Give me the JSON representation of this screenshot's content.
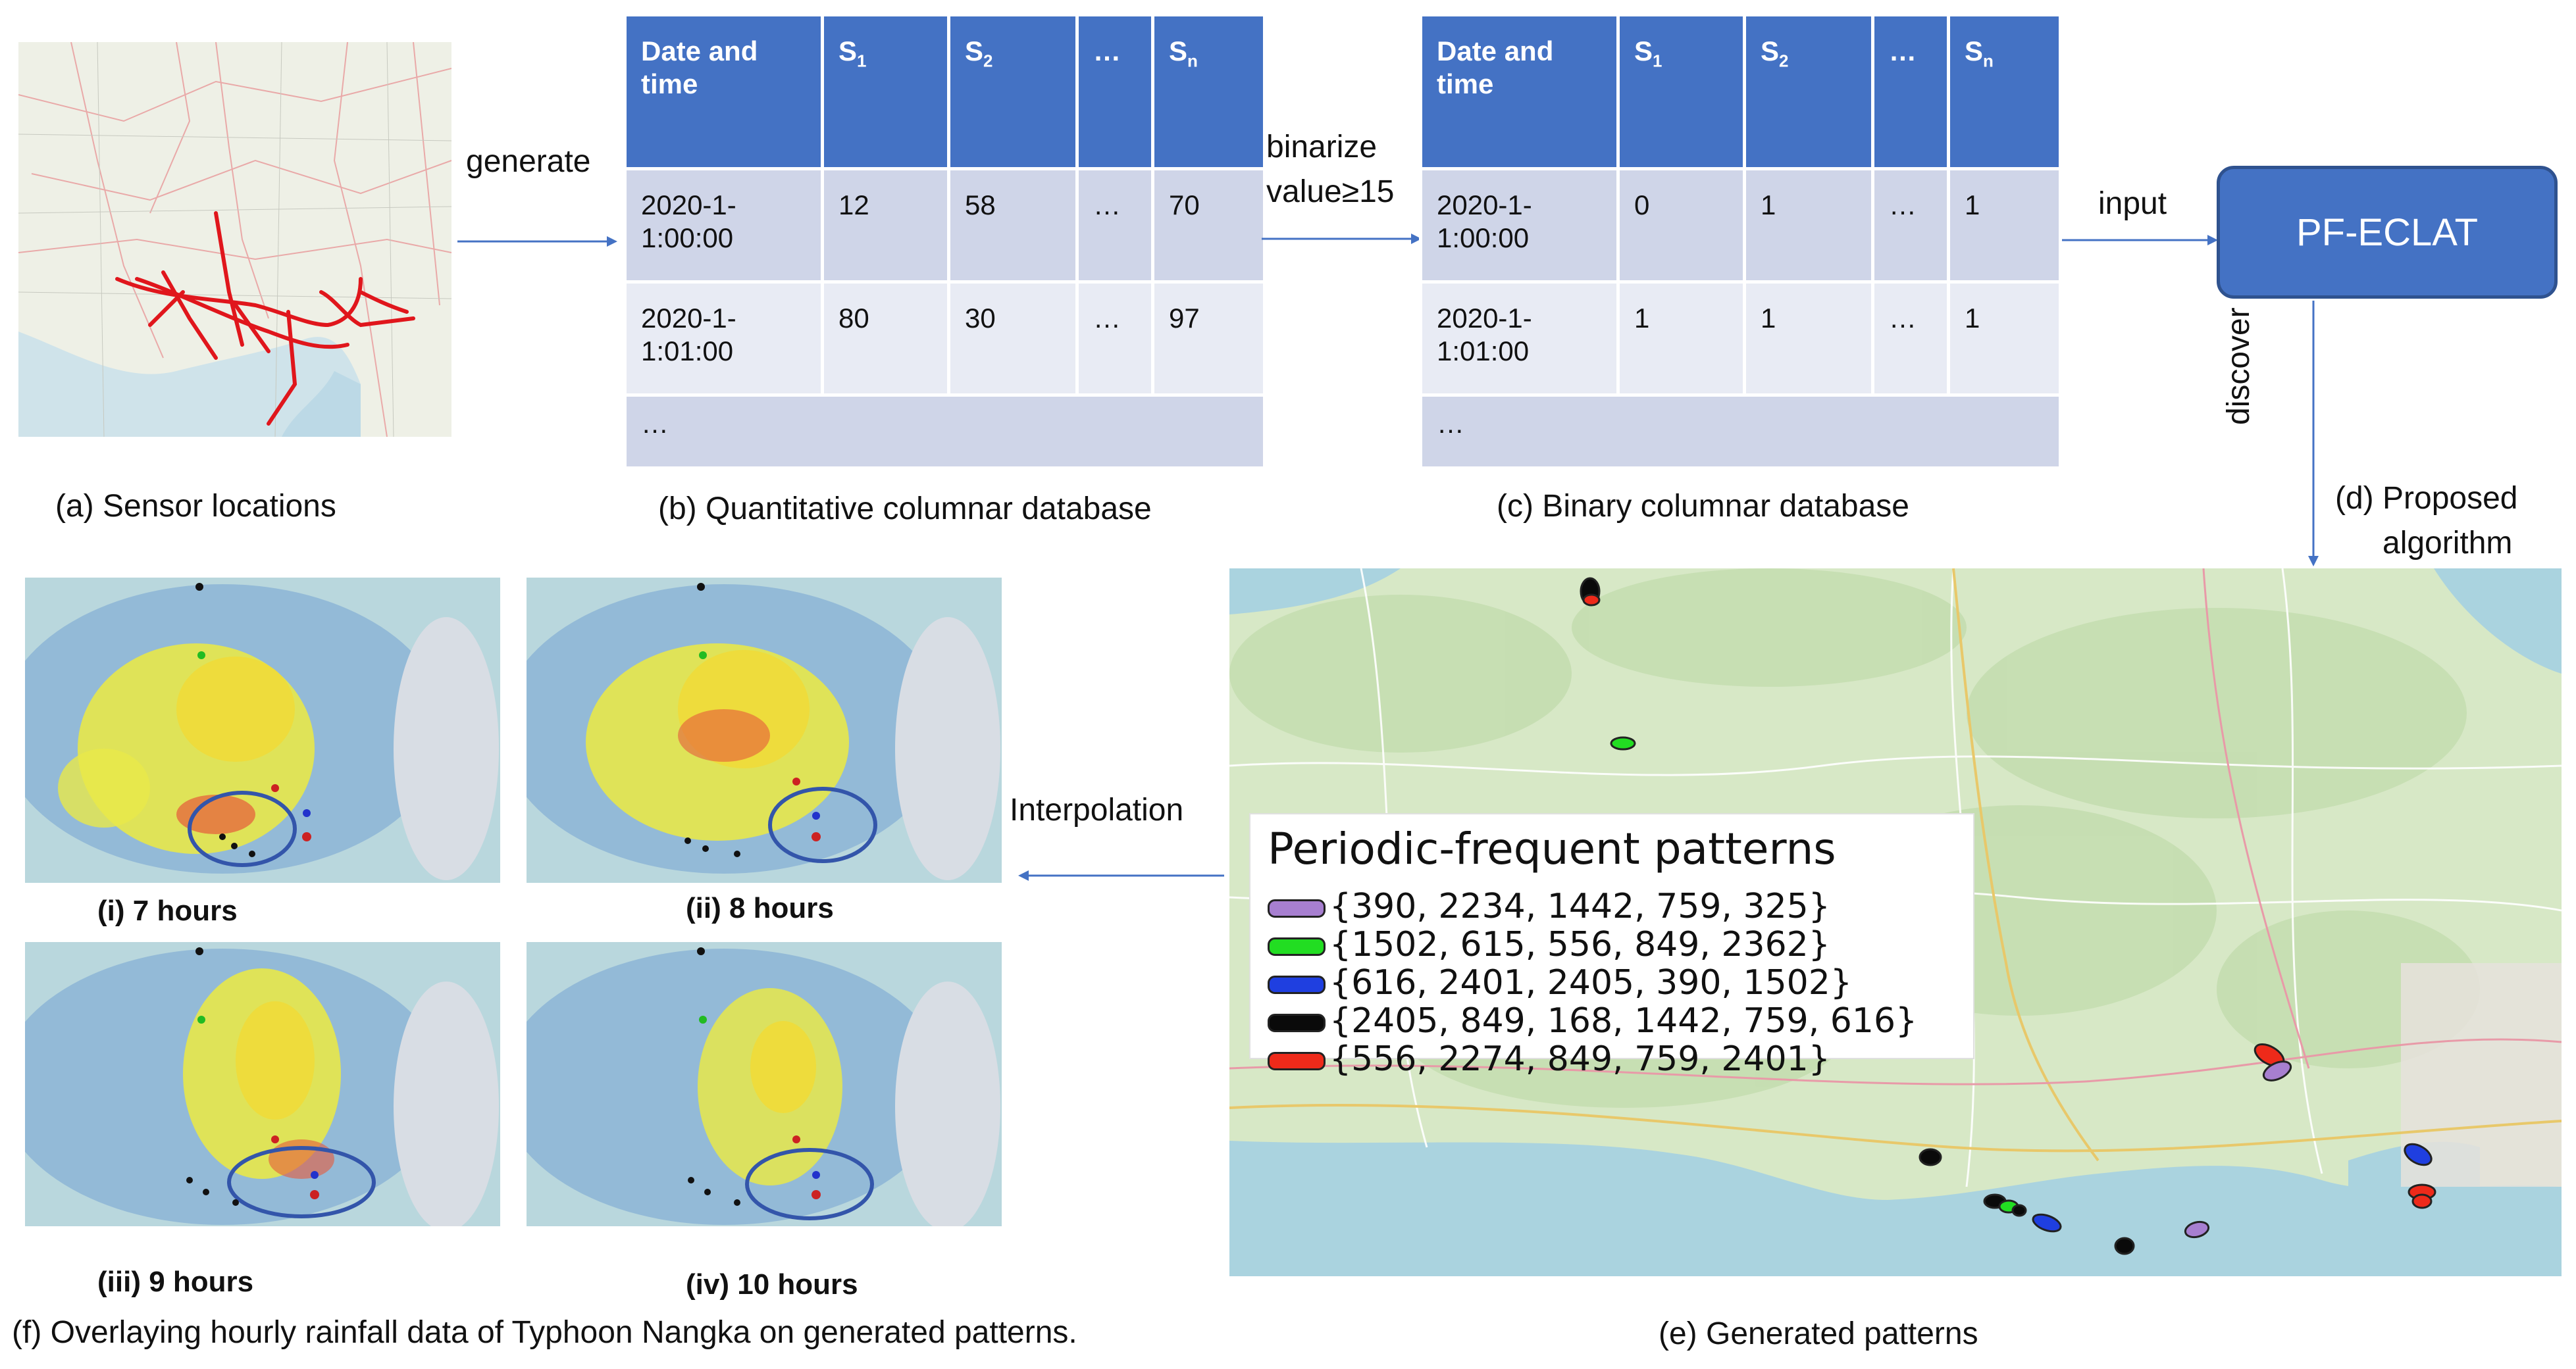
{
  "labels": {
    "generate": "generate",
    "binarize_1": "binarize",
    "binarize_2": "value≥15",
    "input": "input",
    "discover": "discover",
    "interpolation": "Interpolation",
    "algorithm": "PF-ECLAT"
  },
  "captions": {
    "a": "(a) Sensor locations",
    "b": "(b) Quantitative columnar database",
    "c": "(c) Binary columnar database",
    "d_1": "(d) Proposed",
    "d_2": "algorithm",
    "e": "(e) Generated patterns",
    "f": "(f) Overlaying hourly rainfall data of Typhoon Nangka on generated patterns."
  },
  "quantitative_table": {
    "header": {
      "date": "Date and time",
      "s1": "S",
      "s1_sub": "1",
      "s2": "S",
      "s2_sub": "2",
      "dots": "…",
      "sn": "S",
      "sn_sub": "n"
    },
    "rows": [
      {
        "date": "2020-1-1:00:00",
        "s1": "12",
        "s2": "58",
        "dots": "…",
        "sn": "70"
      },
      {
        "date": "2020-1-1:01:00",
        "s1": "80",
        "s2": "30",
        "dots": "…",
        "sn": "97"
      }
    ],
    "ellipsis_row": "…"
  },
  "binary_table": {
    "header": {
      "date": "Date and time",
      "s1": "S",
      "s1_sub": "1",
      "s2": "S",
      "s2_sub": "2",
      "dots": "…",
      "sn": "S",
      "sn_sub": "n"
    },
    "rows": [
      {
        "date": "2020-1-1:00:00",
        "s1": "0",
        "s2": "1",
        "dots": "…",
        "sn": "1"
      },
      {
        "date": "2020-1-1:01:00",
        "s1": "1",
        "s2": "1",
        "dots": "…",
        "sn": "1"
      }
    ],
    "ellipsis_row": "…"
  },
  "rain_panels": [
    {
      "caption": "(i) 7 hours"
    },
    {
      "caption": "(ii) 8 hours"
    },
    {
      "caption": "(iii) 9 hours"
    },
    {
      "caption": "(iv) 10 hours"
    }
  ],
  "patterns": {
    "title": "Periodic-frequent patterns",
    "items": [
      {
        "color": "#a77fd0",
        "text": "{390, 2234, 1442, 759, 325}"
      },
      {
        "color": "#22dd22",
        "text": "{1502, 615, 556, 849, 2362}"
      },
      {
        "color": "#1f3fe0",
        "text": "{616, 2401, 2405, 390, 1502}"
      },
      {
        "color": "#0a0a0a",
        "text": "{2405, 849, 168, 1442, 759, 616}"
      },
      {
        "color": "#ee2a1a",
        "text": "{556, 2274, 849, 759, 2401}"
      }
    ]
  },
  "colors": {
    "accent": "#4472c4",
    "algorithm_box": "#4472c4",
    "map_land": "#d6e6c4",
    "map_sea": "#a9d2e6"
  }
}
